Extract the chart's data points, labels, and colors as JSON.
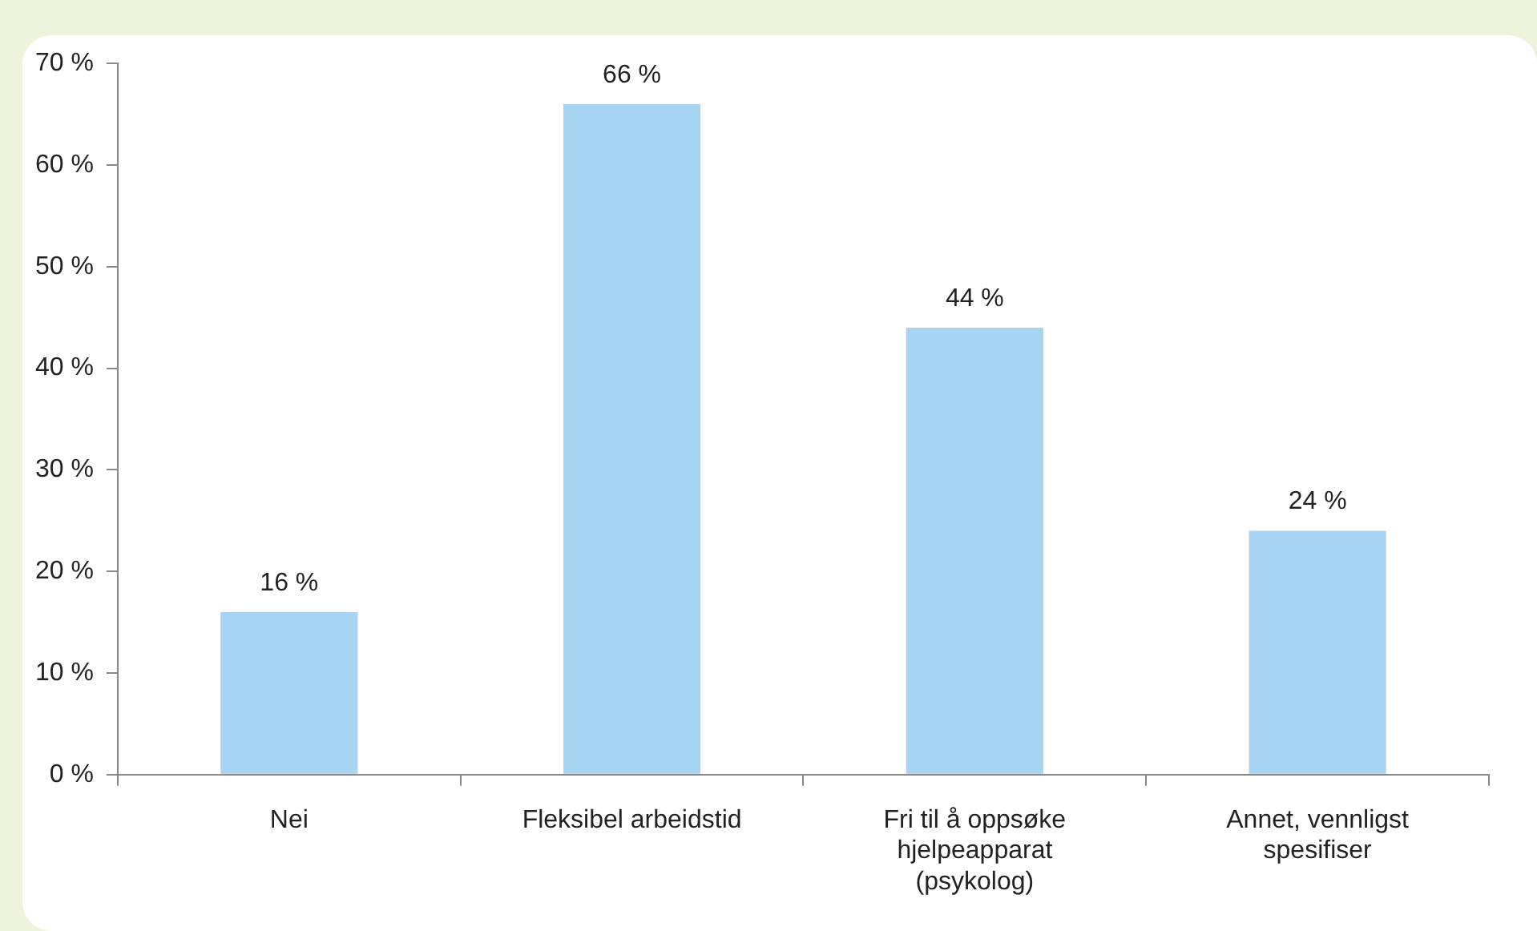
{
  "chart_data": {
    "type": "bar",
    "categories": [
      "Nei",
      "Fleksibel arbeidstid",
      "Fri til å oppsøke hjelpeapparat (psykolog)",
      "Annet, vennligst spesifiser"
    ],
    "values": [
      16,
      66,
      44,
      24
    ],
    "value_labels": [
      "16 %",
      "66 %",
      "44 %",
      "24 %"
    ],
    "color": "#a6d4f2",
    "ylim": [
      0,
      70
    ],
    "yticks": [
      {
        "value": 0,
        "label": "0 %"
      },
      {
        "value": 10,
        "label": "10 %"
      },
      {
        "value": 20,
        "label": "20 %"
      },
      {
        "value": 30,
        "label": "30 %"
      },
      {
        "value": 40,
        "label": "40 %"
      },
      {
        "value": 50,
        "label": "50 %"
      },
      {
        "value": 60,
        "label": "60 %"
      },
      {
        "value": 70,
        "label": "70 %"
      }
    ],
    "grid": false,
    "legend": false
  }
}
